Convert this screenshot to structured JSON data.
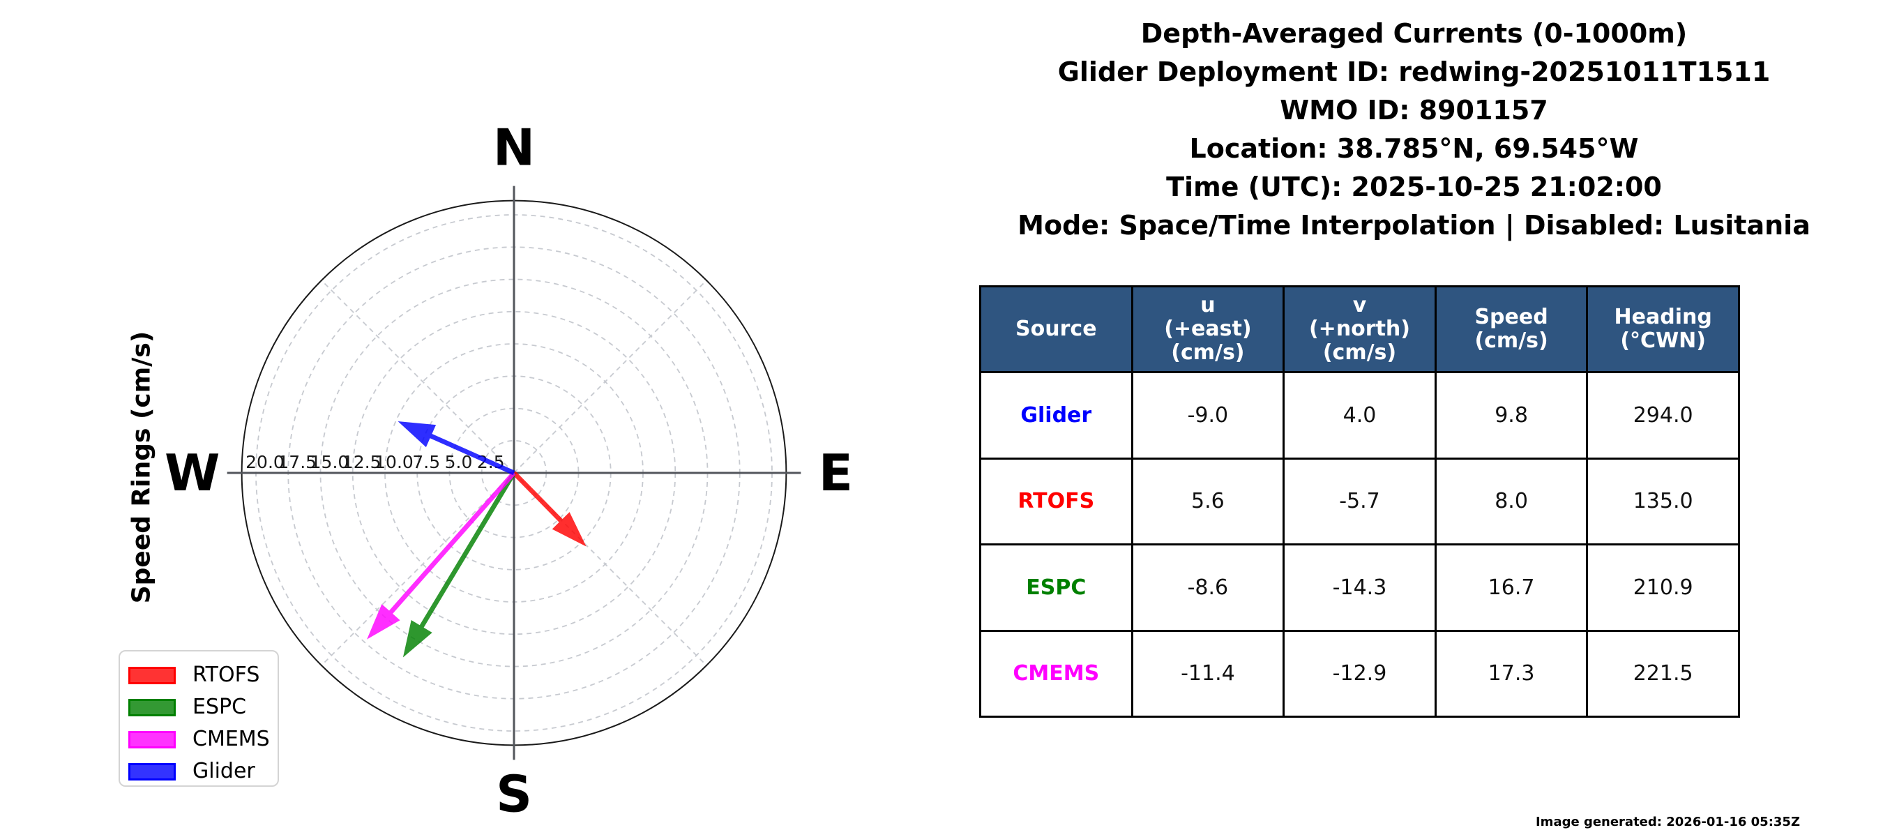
{
  "header": {
    "lines": [
      "Depth-Averaged Currents (0-1000m)",
      "Glider Deployment ID: redwing-20251011T1511",
      "WMO ID: 8901157",
      "Location: 38.785°N, 69.545°W",
      "Time (UTC): 2025-10-25 21:02:00",
      "Mode: Space/Time Interpolation | Disabled: Lusitania"
    ]
  },
  "chart_data": {
    "type": "quiver_polar",
    "axis_label": "Speed Rings (cm/s)",
    "compass_labels": {
      "north": "N",
      "east": "E",
      "south": "S",
      "west": "W"
    },
    "ring_values_cms": [
      2.5,
      5.0,
      7.5,
      10.0,
      12.5,
      15.0,
      17.5,
      20.0
    ],
    "ring_tick_labels": [
      "20.0",
      "17.5",
      "15.0",
      "12.5",
      "10.0",
      "7.5",
      "5.0",
      "2.5"
    ],
    "outer_ring_cms": 21.1,
    "grid": {
      "rings_dashed": true,
      "diagonal_spokes_deg": [
        45,
        135,
        225,
        315
      ]
    },
    "series": [
      {
        "name": "RTOFS",
        "color": "#ff0000",
        "u_cms": 5.6,
        "v_cms": -5.7,
        "speed_cms": 8.0,
        "heading_deg_cwn": 135.0
      },
      {
        "name": "ESPC",
        "color": "#008000",
        "u_cms": -8.6,
        "v_cms": -14.3,
        "speed_cms": 16.7,
        "heading_deg_cwn": 210.9
      },
      {
        "name": "CMEMS",
        "color": "#ff00ff",
        "u_cms": -11.4,
        "v_cms": -12.9,
        "speed_cms": 17.3,
        "heading_deg_cwn": 221.5
      },
      {
        "name": "Glider",
        "color": "#0000ff",
        "u_cms": -9.0,
        "v_cms": 4.0,
        "speed_cms": 9.8,
        "heading_deg_cwn": 294.0
      }
    ],
    "legend_order": [
      "RTOFS",
      "ESPC",
      "CMEMS",
      "Glider"
    ],
    "legend_position": "lower-left"
  },
  "table": {
    "header_bg_color": "#2f5580",
    "columns": [
      "Source",
      "u\n(+east)\n(cm/s)",
      "v\n(+north)\n(cm/s)",
      "Speed\n(cm/s)",
      "Heading\n(°CWN)"
    ],
    "rows": [
      {
        "source": "Glider",
        "color": "#0000ff",
        "u": "-9.0",
        "v": "4.0",
        "speed": "9.8",
        "heading": "294.0"
      },
      {
        "source": "RTOFS",
        "color": "#ff0000",
        "u": "5.6",
        "v": "-5.7",
        "speed": "8.0",
        "heading": "135.0"
      },
      {
        "source": "ESPC",
        "color": "#008000",
        "u": "-8.6",
        "v": "-14.3",
        "speed": "16.7",
        "heading": "210.9"
      },
      {
        "source": "CMEMS",
        "color": "#ff00ff",
        "u": "-11.4",
        "v": "-12.9",
        "speed": "17.3",
        "heading": "221.5"
      }
    ]
  },
  "footer": {
    "generated": "Image generated: 2026-01-16 05:35Z"
  }
}
